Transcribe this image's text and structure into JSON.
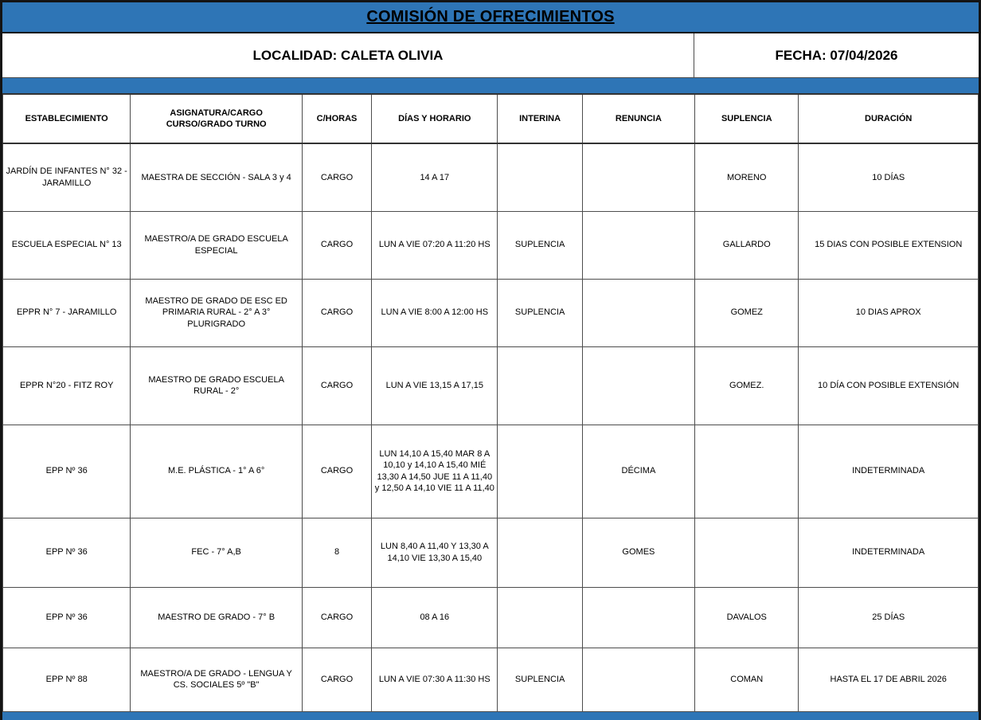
{
  "title": "COMISIÓN DE OFRECIMIENTOS",
  "subheader": {
    "localidad": "LOCALIDAD: CALETA OLIVIA",
    "fecha": "FECHA: 07/04/2026"
  },
  "colors": {
    "accent_blue": "#2E75B6",
    "border_dark": "#141414",
    "grid_line": "#4d4d4d",
    "text": "#000000"
  },
  "table": {
    "columns": [
      "ESTABLECIMIENTO",
      "ASIGNATURA/CARGO\nCURSO/GRADO TURNO",
      "C/HORAS",
      "DÍAS Y HORARIO",
      "INTERINA",
      "RENUNCIA",
      "SUPLENCIA",
      "DURACIÓN"
    ],
    "rows": [
      [
        "JARDÍN DE INFANTES N° 32 - JARAMILLO",
        "MAESTRA DE SECCIÓN - SALA 3 y 4",
        "CARGO",
        "14 A 17",
        "",
        "",
        "MORENO",
        "10 DÍAS"
      ],
      [
        "ESCUELA ESPECIAL N° 13",
        "MAESTRO/A DE GRADO ESCUELA ESPECIAL",
        "CARGO",
        "LUN A VIE 07:20 A 11:20 HS",
        "SUPLENCIA",
        "",
        "GALLARDO",
        "15 DIAS CON POSIBLE EXTENSION"
      ],
      [
        "EPPR N° 7 - JARAMILLO",
        "MAESTRO DE GRADO DE ESC ED PRIMARIA RURAL - 2° A 3° PLURIGRADO",
        "CARGO",
        "LUN A VIE 8:00 A 12:00 HS",
        "SUPLENCIA",
        "",
        "GOMEZ",
        "10 DIAS APROX"
      ],
      [
        "EPPR N°20 - FITZ ROY",
        "MAESTRO DE GRADO ESCUELA RURAL - 2°",
        "CARGO",
        "LUN A VIE 13,15 A 17,15",
        "",
        "",
        "GOMEZ.",
        "10 DÍA CON POSIBLE EXTENSIÓN"
      ],
      [
        "EPP Nº 36",
        "M.E. PLÁSTICA - 1° A 6°",
        "CARGO",
        "LUN 14,10 A 15,40 MAR 8 A 10,10 y 14,10 A 15,40 MIÉ 13,30 A 14,50 JUE 11 A 11,40 y 12,50 A 14,10 VIE 11 A 11,40",
        "",
        "DÉCIMA",
        "",
        "INDETERMINADA"
      ],
      [
        "EPP Nº 36",
        "FEC - 7° A,B",
        "8",
        "LUN 8,40 A 11,40 Y 13,30 A 14,10 VIE 13,30 A 15,40",
        "",
        "GOMES",
        "",
        "INDETERMINADA"
      ],
      [
        "EPP Nº 36",
        "MAESTRO DE GRADO - 7° B",
        "CARGO",
        "08 A 16",
        "",
        "",
        "DAVALOS",
        "25 DÍAS"
      ],
      [
        "EPP Nº 88",
        "MAESTRO/A DE GRADO - LENGUA Y CS. SOCIALES 5º \"B\"",
        "CARGO",
        "LUN A VIE 07:30 A 11:30 HS",
        "SUPLENCIA",
        "",
        "COMAN",
        "HASTA EL 17 DE ABRIL 2026"
      ]
    ]
  }
}
